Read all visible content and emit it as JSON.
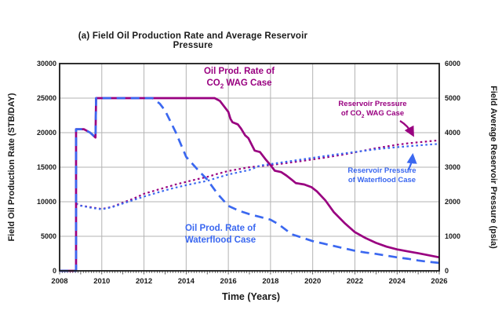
{
  "title": "(a) Field Oil Production Rate and Average Reservoir Pressure",
  "colors": {
    "co2_wag": "#990080",
    "waterflood": "#3b68f0",
    "grid": "#b3b3b3",
    "frame": "#1a1a1a"
  },
  "chart_data": {
    "type": "line",
    "title": "(a) Field Oil Production Rate and Average Reservoir Pressure",
    "xlabel": "Time (Years)",
    "ylabel_left_lines": [
      "Field Oil Production Rate",
      "(STB/DAY)"
    ],
    "ylabel_right_lines": [
      "Field Average Reservoir Pressure",
      "(psia)"
    ],
    "x_range": [
      2008,
      2026
    ],
    "y_left_range": [
      0,
      30000
    ],
    "y_right_range": [
      0,
      6000
    ],
    "x_ticks": [
      2008,
      2010,
      2012,
      2014,
      2016,
      2018,
      2020,
      2022,
      2024,
      2026
    ],
    "y_left_ticks": [
      0,
      5000,
      10000,
      15000,
      20000,
      25000,
      30000
    ],
    "y_right_ticks": [
      0,
      1000,
      2000,
      3000,
      4000,
      5000,
      6000
    ],
    "grid": true,
    "legend_position": "in-plot annotations with arrows",
    "series": [
      {
        "name": "Reservoir Pressure of CO2 WAG Case",
        "axis": "right",
        "units": "psia",
        "color": "#990080",
        "style": "dot",
        "points": [
          [
            2008.78,
            1950
          ],
          [
            2009,
            1890
          ],
          [
            2009.5,
            1840
          ],
          [
            2010,
            1790
          ],
          [
            2010.5,
            1855
          ],
          [
            2011,
            1975
          ],
          [
            2011.5,
            2090
          ],
          [
            2012,
            2230
          ],
          [
            2012.5,
            2320
          ],
          [
            2013,
            2410
          ],
          [
            2013.5,
            2500
          ],
          [
            2014,
            2575
          ],
          [
            2014.5,
            2650
          ],
          [
            2015,
            2720
          ],
          [
            2015.5,
            2810
          ],
          [
            2016,
            2890
          ],
          [
            2016.5,
            2945
          ],
          [
            2017,
            3000
          ],
          [
            2017.5,
            3030
          ],
          [
            2018,
            3060
          ],
          [
            2018.5,
            3100
          ],
          [
            2019,
            3140
          ],
          [
            2019.5,
            3180
          ],
          [
            2020,
            3225
          ],
          [
            2020.5,
            3270
          ],
          [
            2021,
            3320
          ],
          [
            2021.5,
            3370
          ],
          [
            2022,
            3430
          ],
          [
            2022.5,
            3490
          ],
          [
            2023,
            3550
          ],
          [
            2023.5,
            3600
          ],
          [
            2024,
            3650
          ],
          [
            2024.5,
            3690
          ],
          [
            2025,
            3720
          ],
          [
            2025.5,
            3750
          ],
          [
            2026,
            3780
          ]
        ]
      },
      {
        "name": "Reservoir Pressure of Waterflood Case",
        "axis": "right",
        "units": "psia",
        "color": "#3b68f0",
        "style": "dot",
        "points": [
          [
            2008.78,
            1950
          ],
          [
            2009,
            1885
          ],
          [
            2009.5,
            1825
          ],
          [
            2010,
            1780
          ],
          [
            2010.5,
            1845
          ],
          [
            2011,
            1950
          ],
          [
            2011.5,
            2050
          ],
          [
            2012,
            2150
          ],
          [
            2012.5,
            2240
          ],
          [
            2013,
            2330
          ],
          [
            2013.5,
            2410
          ],
          [
            2014,
            2480
          ],
          [
            2014.5,
            2545
          ],
          [
            2015,
            2605
          ],
          [
            2015.5,
            2700
          ],
          [
            2016,
            2790
          ],
          [
            2016.5,
            2855
          ],
          [
            2017,
            2920
          ],
          [
            2017.5,
            3045
          ],
          [
            2018,
            3090
          ],
          [
            2018.5,
            3135
          ],
          [
            2019,
            3180
          ],
          [
            2019.5,
            3225
          ],
          [
            2020,
            3270
          ],
          [
            2020.5,
            3315
          ],
          [
            2021,
            3360
          ],
          [
            2021.5,
            3400
          ],
          [
            2022,
            3440
          ],
          [
            2022.5,
            3480
          ],
          [
            2023,
            3520
          ],
          [
            2023.5,
            3550
          ],
          [
            2024,
            3580
          ],
          [
            2024.5,
            3605
          ],
          [
            2025,
            3630
          ],
          [
            2025.5,
            3655
          ],
          [
            2026,
            3675
          ]
        ]
      },
      {
        "name": "Oil Prod. Rate of CO2 WAG Case",
        "axis": "left",
        "units": "STB/DAY",
        "color": "#990080",
        "style": "solid",
        "points": [
          [
            2008,
            0
          ],
          [
            2008.78,
            0
          ],
          [
            2008.78,
            20500
          ],
          [
            2009.15,
            20500
          ],
          [
            2009.45,
            20000
          ],
          [
            2009.7,
            19300
          ],
          [
            2009.73,
            25000
          ],
          [
            2015.35,
            25000
          ],
          [
            2015.6,
            24600
          ],
          [
            2015.85,
            23600
          ],
          [
            2016,
            23000
          ],
          [
            2016.1,
            22000
          ],
          [
            2016.2,
            21500
          ],
          [
            2016.45,
            21200
          ],
          [
            2016.6,
            20600
          ],
          [
            2016.8,
            19600
          ],
          [
            2016.95,
            19200
          ],
          [
            2017.1,
            18300
          ],
          [
            2017.25,
            17400
          ],
          [
            2017.5,
            17200
          ],
          [
            2017.75,
            16200
          ],
          [
            2018,
            15300
          ],
          [
            2018.2,
            14500
          ],
          [
            2018.5,
            14300
          ],
          [
            2018.75,
            13800
          ],
          [
            2019,
            13200
          ],
          [
            2019.2,
            12700
          ],
          [
            2019.6,
            12500
          ],
          [
            2019.95,
            12100
          ],
          [
            2020.2,
            11500
          ],
          [
            2020.6,
            10200
          ],
          [
            2021,
            8500
          ],
          [
            2021.5,
            6950
          ],
          [
            2022,
            5600
          ],
          [
            2022.5,
            4750
          ],
          [
            2023,
            4050
          ],
          [
            2023.5,
            3500
          ],
          [
            2024,
            3100
          ],
          [
            2024.5,
            2820
          ],
          [
            2025,
            2550
          ],
          [
            2025.5,
            2250
          ],
          [
            2026,
            1950
          ]
        ]
      },
      {
        "name": "Oil Prod. Rate of Waterflood Case",
        "axis": "left",
        "units": "STB/DAY",
        "color": "#3b68f0",
        "style": "dash",
        "points": [
          [
            2008,
            0
          ],
          [
            2008.78,
            0
          ],
          [
            2008.78,
            20500
          ],
          [
            2009.15,
            20500
          ],
          [
            2009.45,
            20000
          ],
          [
            2009.7,
            19300
          ],
          [
            2009.73,
            25000
          ],
          [
            2012.4,
            25000
          ],
          [
            2012.75,
            24200
          ],
          [
            2013,
            23200
          ],
          [
            2013.5,
            20100
          ],
          [
            2014,
            16500
          ],
          [
            2014.5,
            14800
          ],
          [
            2015,
            13200
          ],
          [
            2015.5,
            11100
          ],
          [
            2016,
            9400
          ],
          [
            2016.5,
            8700
          ],
          [
            2017,
            8200
          ],
          [
            2017.5,
            7800
          ],
          [
            2018,
            7400
          ],
          [
            2018.35,
            6800
          ],
          [
            2018.7,
            6000
          ],
          [
            2019,
            5300
          ],
          [
            2019.5,
            4800
          ],
          [
            2020,
            4300
          ],
          [
            2020.5,
            3950
          ],
          [
            2021,
            3600
          ],
          [
            2021.5,
            3250
          ],
          [
            2022,
            2900
          ],
          [
            2022.5,
            2650
          ],
          [
            2023,
            2450
          ],
          [
            2023.5,
            2200
          ],
          [
            2024,
            1950
          ],
          [
            2024.5,
            1750
          ],
          [
            2025,
            1500
          ],
          [
            2025.5,
            1300
          ],
          [
            2026,
            1150
          ]
        ]
      }
    ],
    "annotations": [
      {
        "id": "oil-wag",
        "lines": [
          "Oil Prod. Rate of",
          "CO2 WAG Case"
        ],
        "color": "#990080"
      },
      {
        "id": "oil-wf",
        "lines": [
          "Oil Prod. Rate of",
          "Waterflood Case"
        ],
        "color": "#3b68f0"
      },
      {
        "id": "res-wag",
        "lines": [
          "Reservoir Pressure",
          "of CO2 WAG Case"
        ],
        "color": "#990080",
        "arrow": "down-right"
      },
      {
        "id": "res-wf",
        "lines": [
          "Reservoir Pressure",
          "of Waterflood Case"
        ],
        "color": "#3b68f0",
        "arrow": "up"
      }
    ]
  }
}
